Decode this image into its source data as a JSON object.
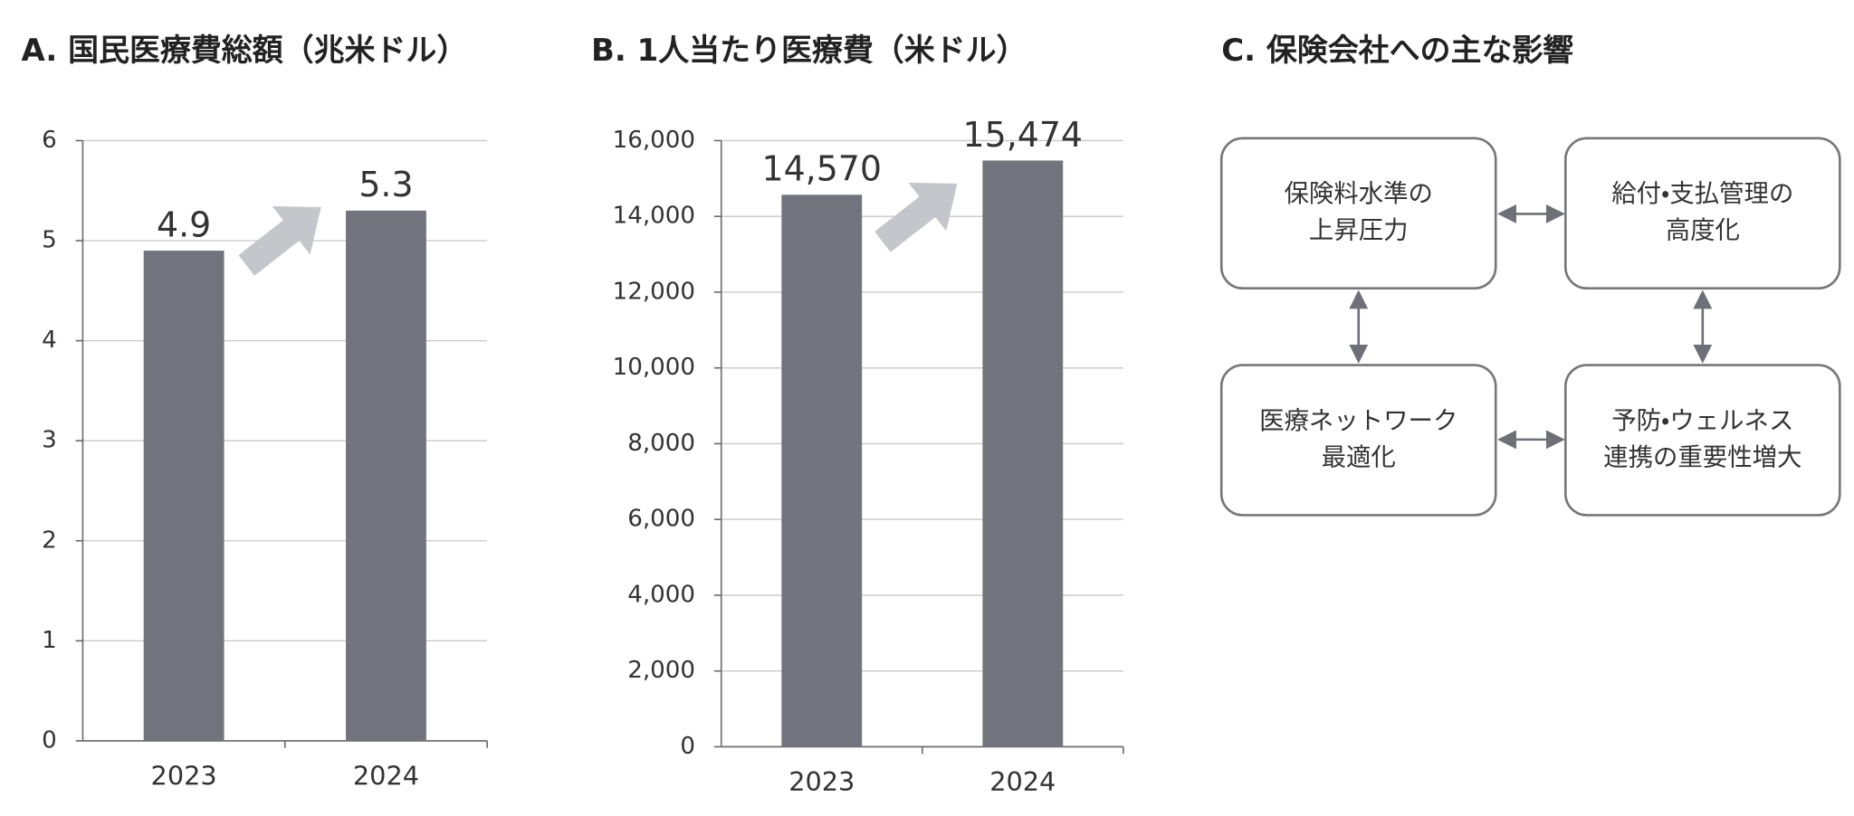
{
  "chart_data": [
    {
      "type": "bar",
      "title": "A. 国民医療費総額（兆米ドル）",
      "categories": [
        "2023",
        "2024"
      ],
      "values": [
        4.9,
        5.3
      ],
      "value_labels": [
        "4.9",
        "5.3"
      ],
      "color": "#73737d",
      "ylim": [
        0,
        6
      ],
      "yticks": [
        0,
        1,
        2,
        3,
        4,
        5,
        6
      ],
      "grid": true
    },
    {
      "type": "bar",
      "title": "B. 1人当たり医療費（米ドル）",
      "categories": [
        "2023",
        "2024"
      ],
      "values": [
        14570,
        15474
      ],
      "value_labels": [
        "14,570",
        "15,474"
      ],
      "color": "#73737d",
      "ylim": [
        0,
        16000
      ],
      "yticks": [
        0,
        {
          "value": 2000,
          "label": "2,000"
        },
        {
          "value": 4000,
          "label": "4,000"
        },
        {
          "value": 6000,
          "label": "6,000"
        },
        {
          "value": 8000,
          "label": "8,000"
        },
        {
          "value": 10000,
          "label": "10,000"
        },
        {
          "value": 12000,
          "label": "12,000"
        },
        {
          "value": 14000,
          "label": "14,000"
        },
        {
          "value": 16000,
          "label": "16,000"
        }
      ],
      "grid": true
    }
  ],
  "diagram": {
    "title": "C. 保険会社への主な影響",
    "nodes": [
      {
        "lines": [
          "保険料水準の",
          "上昇圧力"
        ]
      },
      {
        "lines": [
          "給付・支払管理の",
          "高度化"
        ]
      },
      {
        "lines": [
          "医療ネットワーク",
          "最適化"
        ]
      },
      {
        "lines": [
          "予防・ウェルネス",
          "連携の重要性増大"
        ]
      }
    ]
  }
}
